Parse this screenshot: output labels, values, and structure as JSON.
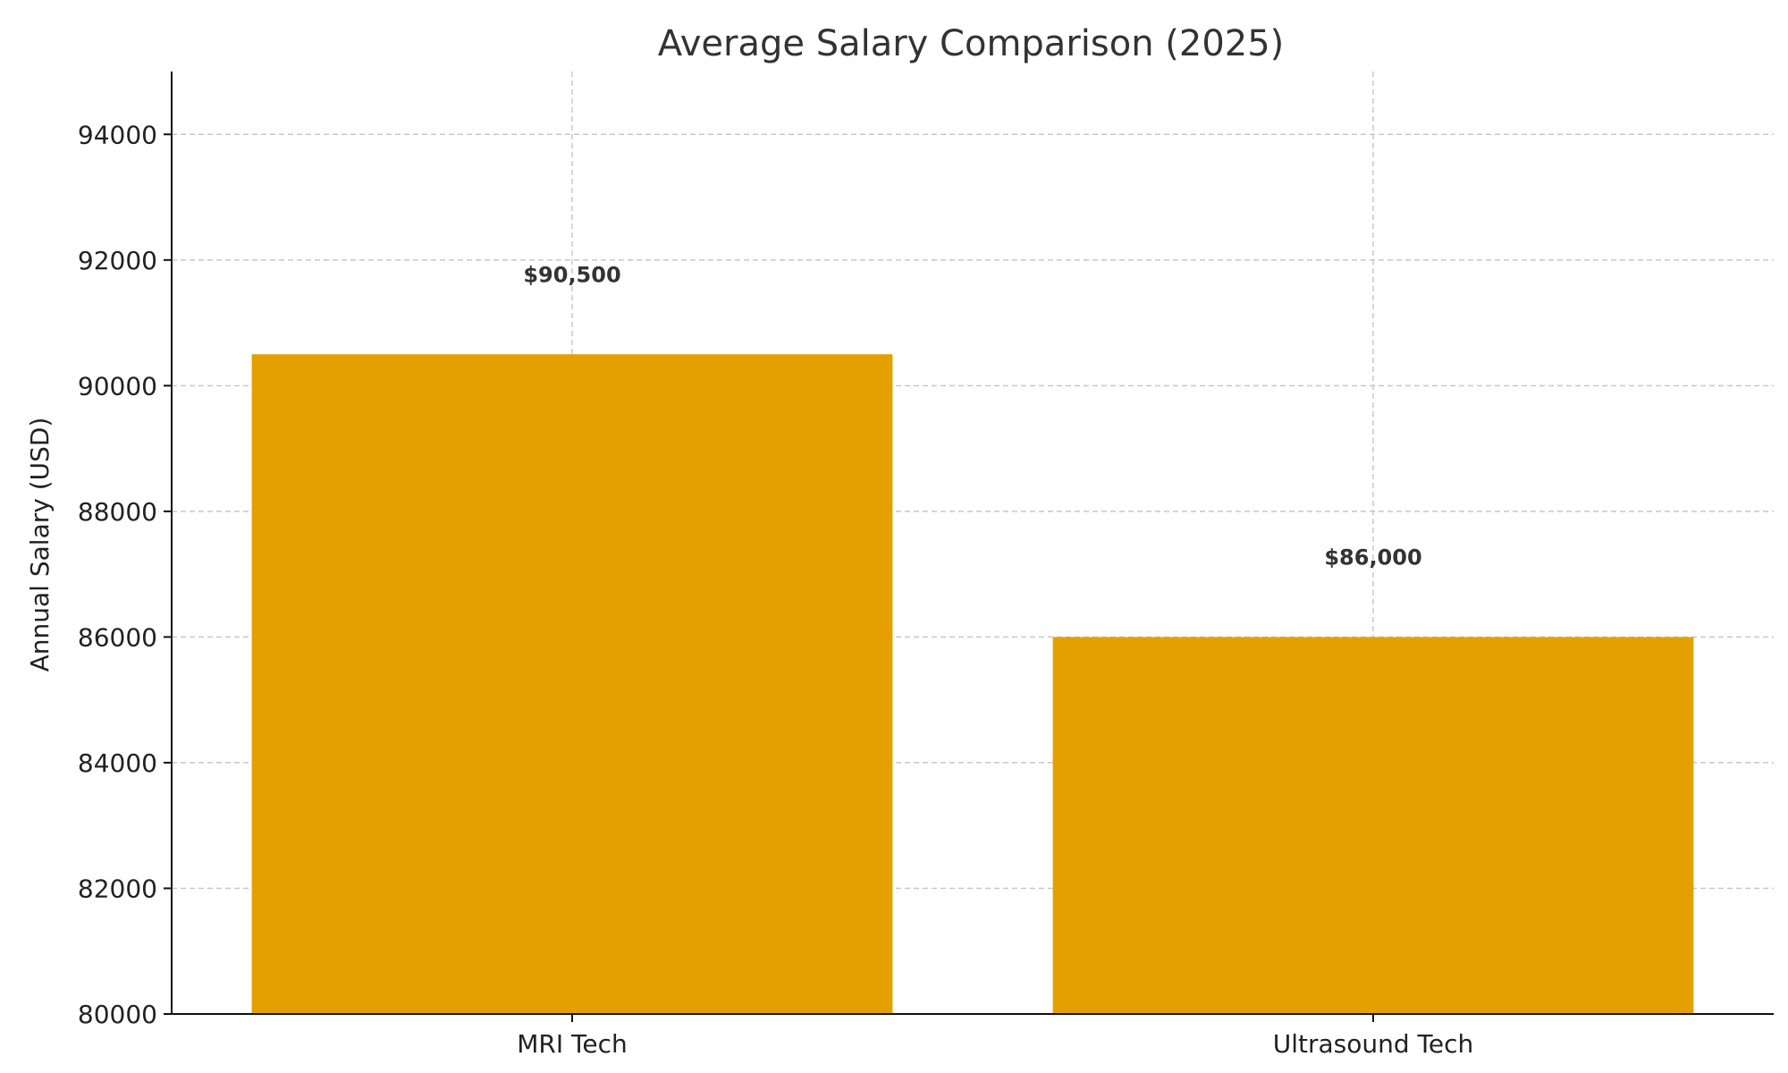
{
  "chart_data": {
    "type": "bar",
    "title": "Average Salary Comparison (2025)",
    "xlabel": "",
    "ylabel": "Annual Salary (USD)",
    "categories": [
      "MRI Tech",
      "Ultrasound Tech"
    ],
    "values": [
      90500,
      86000
    ],
    "data_labels": [
      "$90,500",
      "$86,000"
    ],
    "ylim": [
      80000,
      95000
    ],
    "yticks": [
      80000,
      82000,
      84000,
      86000,
      88000,
      90000,
      92000,
      94000
    ],
    "ytick_labels": [
      "80000",
      "82000",
      "84000",
      "86000",
      "88000",
      "90000",
      "92000",
      "94000"
    ],
    "grid": true,
    "bar_color": "#E3A000"
  }
}
